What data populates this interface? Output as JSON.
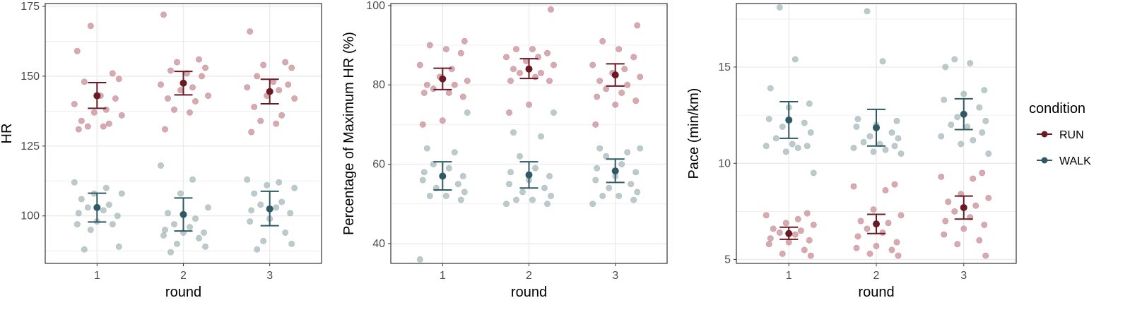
{
  "chart_data": [
    {
      "type": "scatter",
      "title": "",
      "xlabel": "round",
      "ylabel": "HR",
      "categories": [
        "1",
        "2",
        "3"
      ],
      "ylim": [
        83,
        176
      ],
      "yticks": [
        100,
        125,
        150,
        175
      ],
      "grid": true,
      "series": [
        {
          "name": "RUN",
          "points": [
            [
              1,
              [
                159,
                151,
                168,
                149,
                148,
                143,
                142,
                140,
                138,
                137,
                136,
                134,
                133,
                132,
                132,
                131
              ]
            ],
            [
              2,
              [
                172,
                156,
                155,
                153,
                152,
                151,
                150,
                147,
                146,
                145,
                143,
                142,
                141,
                138,
                137,
                131
              ]
            ],
            [
              3,
              [
                166,
                155,
                154,
                153,
                150,
                148,
                147,
                146,
                145,
                143,
                142,
                139,
                136,
                134,
                133,
                130
              ]
            ]
          ],
          "mean": [
            143,
            147.5,
            144.5
          ],
          "error": [
            [
              138.5,
              147.7
            ],
            [
              143.3,
              151.7
            ],
            [
              140.1,
              148.9
            ]
          ]
        },
        {
          "name": "WALK",
          "points": [
            [
              1,
              [
                112,
                110,
                108,
                108,
                106,
                104,
                103,
                102,
                101,
                100,
                98,
                97,
                97,
                95,
                89,
                88
              ]
            ],
            [
              2,
              [
                118,
                113,
                108,
                103,
                101,
                99,
                97,
                96,
                95,
                94,
                94,
                93,
                92,
                90,
                89,
                87
              ]
            ],
            [
              3,
              [
                113,
                112,
                111,
                110,
                108,
                105,
                104,
                103,
                102,
                101,
                99,
                98,
                94,
                91,
                90,
                88
              ]
            ]
          ],
          "mean": [
            103,
            100.5,
            102.5
          ],
          "error": [
            [
              97.8,
              108.1
            ],
            [
              94.6,
              106.4
            ],
            [
              96.5,
              108.8
            ]
          ]
        }
      ]
    },
    {
      "type": "scatter",
      "title": "",
      "xlabel": "round",
      "ylabel": "Percentage of Maximum HR (%)",
      "categories": [
        "1",
        "2",
        "3"
      ],
      "ylim": [
        35,
        100.5
      ],
      "yticks": [
        40,
        60,
        80,
        100
      ],
      "grid": true,
      "series": [
        {
          "name": "RUN",
          "points": [
            [
              1,
              [
                91,
                90,
                89,
                88,
                85,
                84,
                82,
                81,
                80,
                80,
                79,
                78,
                78,
                77,
                71,
                70
              ]
            ],
            [
              2,
              [
                99,
                89,
                89,
                88,
                87,
                87,
                86,
                85,
                84,
                83,
                83,
                82,
                81,
                81,
                75,
                73
              ]
            ],
            [
              3,
              [
                95,
                91,
                89,
                87,
                85,
                84,
                83,
                82,
                81,
                80,
                79,
                78,
                77,
                76,
                75,
                70
              ]
            ]
          ],
          "mean": [
            81.5,
            84,
            82.5
          ],
          "error": [
            [
              78.8,
              84.2
            ],
            [
              81.6,
              86.6
            ],
            [
              79.7,
              85.3
            ]
          ]
        },
        {
          "name": "WALK",
          "points": [
            [
              1,
              [
                73,
                64,
                63,
                60,
                59,
                58,
                57,
                57,
                56,
                55,
                54,
                53,
                52,
                52,
                51,
                36
              ]
            ],
            [
              2,
              [
                73,
                68,
                67,
                62,
                59,
                58,
                57,
                56,
                55,
                54,
                53,
                52,
                51,
                51,
                50,
                50
              ]
            ],
            [
              3,
              [
                64,
                64,
                63,
                62,
                60,
                59,
                58,
                57,
                56,
                55,
                54,
                53,
                52,
                52,
                51,
                50
              ]
            ]
          ],
          "mean": [
            57,
            57.3,
            58.3
          ],
          "error": [
            [
              53.5,
              60.6
            ],
            [
              54,
              60.6
            ],
            [
              55.4,
              61.3
            ]
          ]
        }
      ]
    },
    {
      "type": "scatter",
      "title": "",
      "xlabel": "round",
      "ylabel": "Pace (min/km)",
      "categories": [
        "1",
        "2",
        "3"
      ],
      "ylim": [
        4.8,
        18.3
      ],
      "yticks": [
        5,
        10,
        15
      ],
      "grid": true,
      "series": [
        {
          "name": "RUN",
          "points": [
            [
              1,
              [
                7.4,
                7.3,
                7.1,
                6.9,
                6.8,
                6.6,
                6.5,
                6.4,
                6.3,
                6.1,
                6.0,
                5.9,
                5.8,
                5.5,
                5.3,
                5.2
              ]
            ],
            [
              2,
              [
                8.9,
                8.8,
                8.6,
                7.6,
                7.3,
                7.0,
                6.9,
                6.6,
                6.4,
                6.2,
                5.9,
                5.7,
                5.6,
                5.5,
                5.3,
                5.2
              ]
            ],
            [
              3,
              [
                9.5,
                9.3,
                9.2,
                8.4,
                8.2,
                8.0,
                7.8,
                7.5,
                7.2,
                7.0,
                6.8,
                6.6,
                6.3,
                6.0,
                5.8,
                5.2
              ]
            ]
          ],
          "mean": [
            6.35,
            6.85,
            7.7
          ],
          "error": [
            [
              6.05,
              6.68
            ],
            [
              6.35,
              7.35
            ],
            [
              7.1,
              8.3
            ]
          ]
        },
        {
          "name": "WALK",
          "points": [
            [
              1,
              [
                18.1,
                15.4,
                13.9,
                13.1,
                12.9,
                12.3,
                12.1,
                11.9,
                11.6,
                11.3,
                11.0,
                10.9,
                10.9,
                10.8,
                10.6,
                9.5
              ]
            ],
            [
              2,
              [
                17.9,
                15.3,
                12.3,
                12.2,
                12.0,
                11.9,
                11.6,
                11.4,
                11.3,
                11.1,
                11.0,
                10.9,
                10.8,
                10.7,
                10.6,
                10.5
              ]
            ],
            [
              3,
              [
                15.4,
                15.2,
                15.0,
                13.8,
                13.6,
                13.3,
                12.9,
                12.4,
                12.2,
                12.0,
                11.9,
                11.6,
                11.4,
                11.2,
                11.0,
                10.5
              ]
            ]
          ],
          "mean": [
            12.25,
            11.85,
            12.55
          ],
          "error": [
            [
              11.3,
              13.2
            ],
            [
              10.9,
              12.8
            ],
            [
              11.75,
              13.35
            ]
          ]
        }
      ]
    }
  ],
  "legend": {
    "title": "condition",
    "items": [
      {
        "label": "RUN",
        "color": "#6b1a24"
      },
      {
        "label": "WALK",
        "color": "#2f5a63"
      }
    ],
    "placement": "right"
  },
  "colors": {
    "RUN": "#6b1a24",
    "WALK": "#2f5a63",
    "RUN_points": "#c4868f",
    "WALK_points": "#9fb3b7",
    "grid": "#ebebeb",
    "panel_border": "#333333"
  }
}
